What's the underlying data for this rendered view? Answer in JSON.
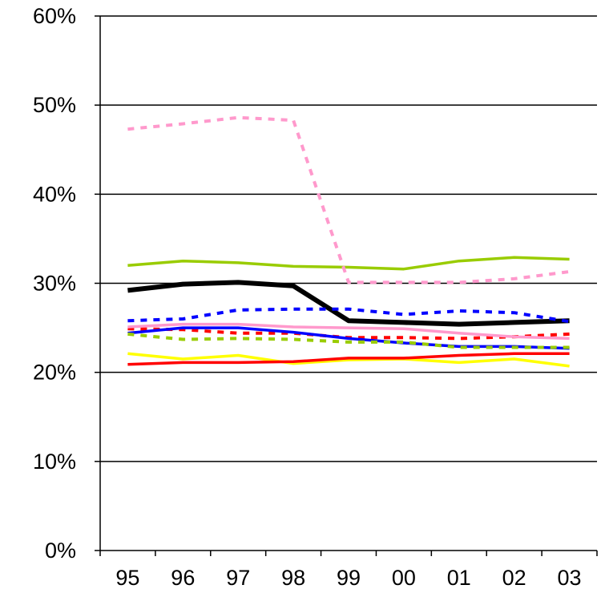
{
  "chart_data": {
    "type": "line",
    "title": "",
    "xlabel": "",
    "ylabel": "",
    "categories": [
      "95",
      "96",
      "97",
      "98",
      "99",
      "00",
      "01",
      "02",
      "03"
    ],
    "ylim": [
      0,
      60
    ],
    "y_ticks": [
      "0%",
      "10%",
      "20%",
      "30%",
      "40%",
      "50%",
      "60%"
    ],
    "grid": "horizontal major gridlines",
    "legend": "none",
    "series": [
      {
        "color": "#000000",
        "style": "solid-thick",
        "values": [
          29.2,
          29.9,
          30.1,
          29.7,
          25.8,
          25.6,
          25.4,
          25.6,
          25.8
        ]
      },
      {
        "color": "#99CC00",
        "style": "solid",
        "values": [
          32.0,
          32.5,
          32.3,
          31.9,
          31.8,
          31.6,
          32.5,
          32.9,
          32.7
        ]
      },
      {
        "color": "#FF99CC",
        "style": "dashed",
        "values": [
          47.3,
          47.9,
          48.6,
          48.3,
          30.1,
          30.1,
          30.1,
          30.5,
          31.3
        ]
      },
      {
        "color": "#0000FF",
        "style": "dashed",
        "values": [
          25.8,
          26.0,
          27.0,
          27.1,
          27.1,
          26.5,
          26.9,
          26.7,
          25.7
        ]
      },
      {
        "color": "#FF0000",
        "style": "dashed",
        "values": [
          24.9,
          24.8,
          24.4,
          24.4,
          23.9,
          23.9,
          23.8,
          24.0,
          24.3
        ]
      },
      {
        "color": "#0000FF",
        "style": "solid",
        "values": [
          24.4,
          25.0,
          25.0,
          24.5,
          23.8,
          23.3,
          22.9,
          22.9,
          22.7
        ]
      },
      {
        "color": "#FF99CC",
        "style": "solid",
        "values": [
          25.1,
          25.4,
          25.4,
          25.1,
          25.0,
          24.9,
          24.4,
          24.0,
          23.8
        ]
      },
      {
        "color": "#99CC00",
        "style": "dashed",
        "values": [
          24.3,
          23.7,
          23.8,
          23.7,
          23.4,
          23.4,
          22.8,
          22.8,
          22.8
        ]
      },
      {
        "color": "#FFFF00",
        "style": "solid",
        "values": [
          22.1,
          21.5,
          21.9,
          21.0,
          21.4,
          21.5,
          21.1,
          21.5,
          20.7
        ]
      },
      {
        "color": "#FF0000",
        "style": "solid",
        "values": [
          20.9,
          21.1,
          21.1,
          21.2,
          21.6,
          21.6,
          21.9,
          22.1,
          22.1
        ]
      }
    ]
  }
}
